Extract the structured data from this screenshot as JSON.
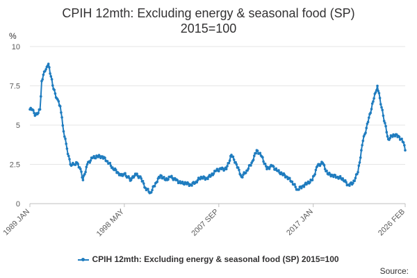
{
  "chart_data": {
    "type": "line",
    "title": "CPIH 12mth: Excluding energy & seasonal food (SP)",
    "subtitle": "2015=100",
    "ylabel": "%",
    "ylim": [
      0,
      10
    ],
    "yticks": [
      "0",
      "2.5",
      "5",
      "7.5",
      "10"
    ],
    "xticks": [
      "1989 JAN",
      "1998 MAY",
      "2007 SEP",
      "2017 JAN",
      "2026 FEB"
    ],
    "grid": true,
    "legend_position": "bottom",
    "color": "#1f7cbf",
    "series": [
      {
        "name": "CPIH 12mth: Excluding energy & seasonal food (SP) 2015=100",
        "points": [
          [
            "1989-01",
            6.0
          ],
          [
            "1989-04",
            6.0
          ],
          [
            "1989-07",
            5.6
          ],
          [
            "1989-10",
            5.7
          ],
          [
            "1990-01",
            6.0
          ],
          [
            "1990-03",
            7.8
          ],
          [
            "1990-06",
            8.4
          ],
          [
            "1990-09",
            8.7
          ],
          [
            "1990-11",
            8.9
          ],
          [
            "1991-02",
            8.1
          ],
          [
            "1991-05",
            7.3
          ],
          [
            "1991-09",
            6.7
          ],
          [
            "1992-01",
            6.2
          ],
          [
            "1992-05",
            4.6
          ],
          [
            "1992-09",
            3.5
          ],
          [
            "1993-01",
            2.5
          ],
          [
            "1993-05",
            2.5
          ],
          [
            "1993-09",
            2.6
          ],
          [
            "1994-01",
            2.2
          ],
          [
            "1994-04",
            1.5
          ],
          [
            "1994-09",
            2.5
          ],
          [
            "1995-03",
            2.9
          ],
          [
            "1995-09",
            3.0
          ],
          [
            "1996-03",
            3.0
          ],
          [
            "1996-09",
            2.7
          ],
          [
            "1997-03",
            2.3
          ],
          [
            "1997-09",
            2.0
          ],
          [
            "1998-01",
            1.8
          ],
          [
            "1998-05",
            1.9
          ],
          [
            "1998-09",
            1.7
          ],
          [
            "1999-01",
            1.5
          ],
          [
            "1999-06",
            1.9
          ],
          [
            "2000-01",
            1.6
          ],
          [
            "2000-06",
            1.0
          ],
          [
            "2000-12",
            0.7
          ],
          [
            "2001-06",
            1.3
          ],
          [
            "2001-12",
            1.8
          ],
          [
            "2002-06",
            1.5
          ],
          [
            "2002-12",
            1.7
          ],
          [
            "2003-06",
            1.5
          ],
          [
            "2003-12",
            1.3
          ],
          [
            "2004-06",
            1.3
          ],
          [
            "2004-12",
            1.2
          ],
          [
            "2005-06",
            1.4
          ],
          [
            "2005-12",
            1.7
          ],
          [
            "2006-06",
            1.6
          ],
          [
            "2006-12",
            1.8
          ],
          [
            "2007-06",
            2.1
          ],
          [
            "2007-12",
            2.2
          ],
          [
            "2008-06",
            2.2
          ],
          [
            "2008-12",
            3.1
          ],
          [
            "2009-06",
            2.5
          ],
          [
            "2009-12",
            1.7
          ],
          [
            "2010-06",
            2.1
          ],
          [
            "2010-12",
            2.6
          ],
          [
            "2011-06",
            3.4
          ],
          [
            "2011-12",
            3.0
          ],
          [
            "2012-06",
            2.2
          ],
          [
            "2012-12",
            2.4
          ],
          [
            "2013-06",
            2.1
          ],
          [
            "2013-12",
            1.9
          ],
          [
            "2014-06",
            1.7
          ],
          [
            "2014-12",
            1.4
          ],
          [
            "2015-06",
            0.9
          ],
          [
            "2015-12",
            1.1
          ],
          [
            "2016-06",
            1.3
          ],
          [
            "2016-12",
            1.5
          ],
          [
            "2017-06",
            2.4
          ],
          [
            "2017-12",
            2.6
          ],
          [
            "2018-06",
            1.9
          ],
          [
            "2018-12",
            1.8
          ],
          [
            "2019-06",
            1.7
          ],
          [
            "2019-12",
            1.6
          ],
          [
            "2020-06",
            1.2
          ],
          [
            "2020-12",
            1.3
          ],
          [
            "2021-06",
            2.0
          ],
          [
            "2021-12",
            4.0
          ],
          [
            "2022-06",
            5.2
          ],
          [
            "2022-12",
            6.5
          ],
          [
            "2023-05",
            7.5
          ],
          [
            "2023-12",
            5.6
          ],
          [
            "2024-06",
            4.1
          ],
          [
            "2024-12",
            4.4
          ],
          [
            "2025-06",
            4.3
          ],
          [
            "2025-12",
            3.9
          ],
          [
            "2026-02",
            3.4
          ]
        ]
      }
    ],
    "source_label": "Source:"
  }
}
